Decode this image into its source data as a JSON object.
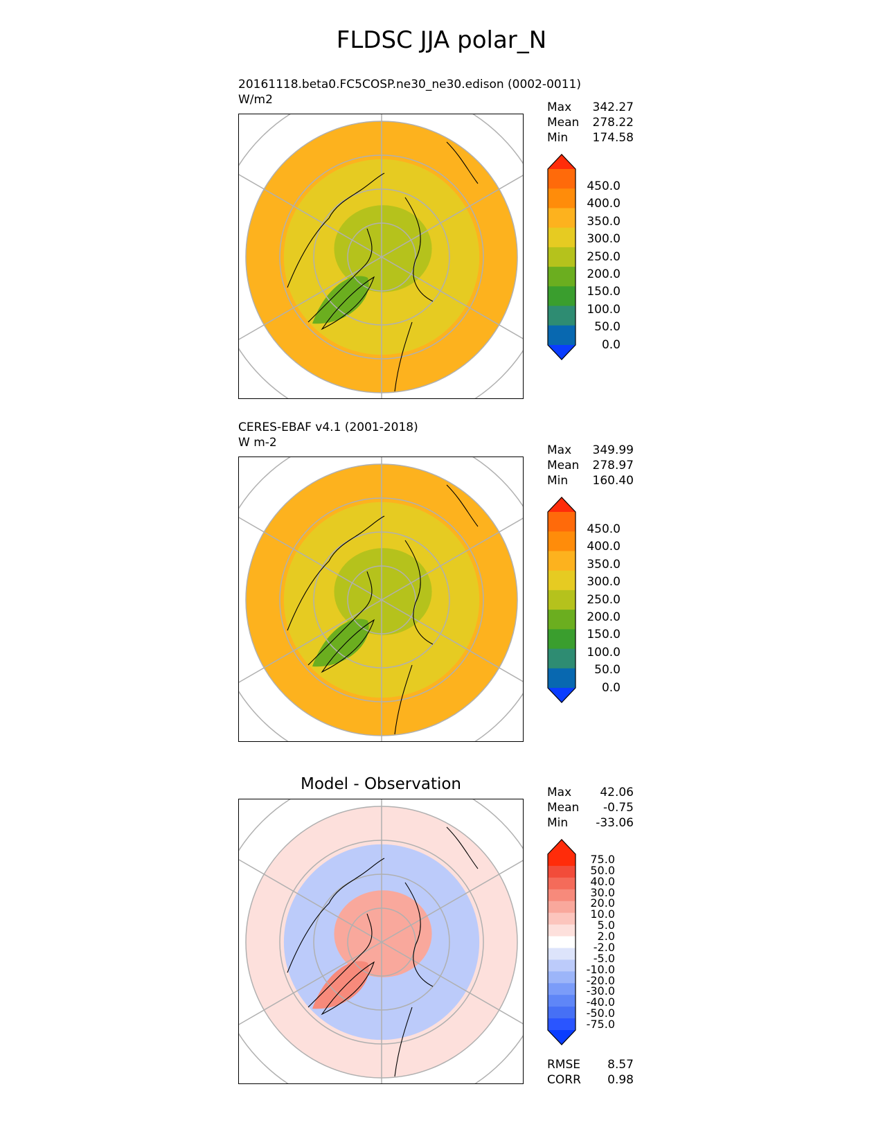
{
  "title": "FLDSC JJA polar_N",
  "panels": [
    {
      "id": "test",
      "title_line1": "20161118.beta0.FC5COSP.ne30_ne30.edison (0002-0011)",
      "title_line2": "W/m2",
      "stats": [
        {
          "label": "Max",
          "value": "342.27"
        },
        {
          "label": "Mean",
          "value": "278.22"
        },
        {
          "label": "Min",
          "value": "174.58"
        }
      ]
    },
    {
      "id": "ref",
      "title_line1": "CERES-EBAF v4.1 (2001-2018)",
      "title_line2": "W m-2",
      "stats": [
        {
          "label": "Max",
          "value": "349.99"
        },
        {
          "label": "Mean",
          "value": "278.97"
        },
        {
          "label": "Min",
          "value": "160.40"
        }
      ]
    },
    {
      "id": "diff",
      "center_title": "Model - Observation",
      "stats": [
        {
          "label": "Max",
          "value": "42.06"
        },
        {
          "label": "Mean",
          "value": "-0.75"
        },
        {
          "label": "Min",
          "value": "-33.06"
        }
      ],
      "metrics": [
        {
          "label": "RMSE",
          "value": "8.57"
        },
        {
          "label": "CORR",
          "value": "0.98"
        }
      ]
    }
  ],
  "chart_data": [
    {
      "type": "heatmap",
      "projection": "north polar stereographic",
      "title": "20161118.beta0.FC5COSP.ne30_ne30.edison (0002-0011)",
      "units": "W/m2",
      "colorbar": {
        "levels": [
          0,
          50,
          100,
          150,
          200,
          250,
          300,
          350,
          400,
          450
        ],
        "tick_labels": [
          "450.0",
          "400.0",
          "350.0",
          "300.0",
          "250.0",
          "200.0",
          "150.0",
          "100.0",
          "50.0",
          "0.0"
        ],
        "colors": [
          "#0a3dff",
          "#0868b0",
          "#2e8c72",
          "#3a9e2e",
          "#6bae1f",
          "#b5c21c",
          "#e6cb22",
          "#fdb21e",
          "#ff8c0a",
          "#ff6a0a",
          "#ff2c0a"
        ],
        "extend": "both"
      },
      "field": {
        "center_value": 225,
        "mid_value": 275,
        "outer_value": 325,
        "greenland_value": 175
      },
      "stats": {
        "max": 342.27,
        "mean": 278.22,
        "min": 174.58
      }
    },
    {
      "type": "heatmap",
      "projection": "north polar stereographic",
      "title": "CERES-EBAF v4.1 (2001-2018)",
      "units": "W m-2",
      "colorbar": {
        "levels": [
          0,
          50,
          100,
          150,
          200,
          250,
          300,
          350,
          400,
          450
        ],
        "tick_labels": [
          "450.0",
          "400.0",
          "350.0",
          "300.0",
          "250.0",
          "200.0",
          "150.0",
          "100.0",
          "50.0",
          "0.0"
        ],
        "colors": [
          "#0a3dff",
          "#0868b0",
          "#2e8c72",
          "#3a9e2e",
          "#6bae1f",
          "#b5c21c",
          "#e6cb22",
          "#fdb21e",
          "#ff8c0a",
          "#ff6a0a",
          "#ff2c0a"
        ],
        "extend": "both"
      },
      "field": {
        "center_value": 225,
        "mid_value": 275,
        "outer_value": 325,
        "greenland_value": 175
      },
      "stats": {
        "max": 349.99,
        "mean": 278.97,
        "min": 160.4
      }
    },
    {
      "type": "heatmap",
      "projection": "north polar stereographic",
      "title": "Model - Observation",
      "colorbar": {
        "levels": [
          -75,
          -50,
          -40,
          -30,
          -20,
          -10,
          -5,
          -2,
          2,
          5,
          10,
          20,
          30,
          40,
          50,
          75
        ],
        "tick_labels": [
          "75.0",
          "50.0",
          "40.0",
          "30.0",
          "20.0",
          "10.0",
          "5.0",
          "2.0",
          "-2.0",
          "-5.0",
          "-10.0",
          "-20.0",
          "-30.0",
          "-40.0",
          "-50.0",
          "-75.0"
        ],
        "colors": [
          "#0a3dff",
          "#2a55ff",
          "#4670f5",
          "#5f86f7",
          "#7b9cf9",
          "#9cb5f9",
          "#bccbfa",
          "#dde4fb",
          "#ffffff",
          "#fde0dc",
          "#fcc5bd",
          "#f9a89c",
          "#f78a7b",
          "#f46b5a",
          "#f24c3a",
          "#ff2c0a",
          "#ff2c0a"
        ],
        "extend": "both"
      },
      "field": {
        "center_value": 15,
        "mid_value": -10,
        "outer_value": 3,
        "greenland_value": 25
      },
      "stats": {
        "max": 42.06,
        "mean": -0.75,
        "min": -33.06
      },
      "metrics": {
        "rmse": 8.57,
        "corr": 0.98
      }
    }
  ]
}
